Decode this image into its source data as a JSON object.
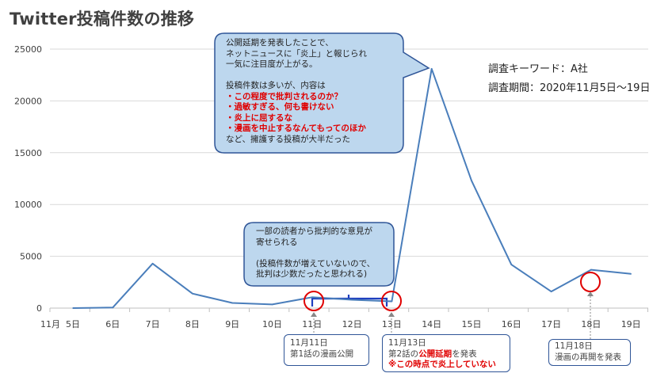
{
  "title": "Twitter投稿件数の推移",
  "info": {
    "keyword": "調査キーワード：A社",
    "period": "調査期間：2020年11月5日〜19日"
  },
  "chart_data": {
    "type": "line",
    "month_label": "11月",
    "categories": [
      "5日",
      "6日",
      "7日",
      "8日",
      "9日",
      "10日",
      "11日",
      "12日",
      "13日",
      "14日",
      "15日",
      "16日",
      "17日",
      "18日",
      "19日"
    ],
    "series": [
      {
        "values": [
          0,
          50,
          4300,
          1400,
          500,
          350,
          1050,
          800,
          650,
          23100,
          12300,
          4200,
          1600,
          3700,
          3300
        ]
      }
    ],
    "y_ticks": [
      "0",
      "5000",
      "10000",
      "15000",
      "20000",
      "25000"
    ],
    "ylim": [
      0,
      25000
    ],
    "grid": true,
    "color": "#4a7ebb"
  },
  "callouts": {
    "top": {
      "lines": [
        "公開延期を発表したことで、",
        "ネットニュースに「炎上」と報じられ",
        "一気に注目度が上がる。"
      ],
      "lines2_intro": "投稿件数は多いが、内容は",
      "red_lines": [
        "・この程度で批判されるのか？",
        "・過敏すぎる、何も書けない",
        "・炎上に屈するな",
        "・漫画を中止するなんてもってのほか"
      ],
      "lines2_outro": "など、擁護する投稿が大半だった"
    },
    "middle": {
      "lines": [
        "一部の読者から批判的な意見が",
        "寄せられる"
      ],
      "lines2": [
        "(投稿件数が増えていないので、",
        "批判は少数だったと思われる)"
      ]
    }
  },
  "boxes": {
    "nov11": {
      "lines": [
        "11月11日",
        "第1話の漫画公開"
      ]
    },
    "nov13": {
      "line1": "11月13日",
      "line2_pre": "第2話の",
      "line2_red": "公開延期",
      "line2_post": "を発表",
      "line3_red": "※この時点で炎上していない"
    },
    "nov18": {
      "lines": [
        "11月18日",
        "漫画の再開を発表"
      ]
    }
  },
  "colors": {
    "line": "#4a7ebb",
    "callout_fill": "#bdd7ee",
    "callout_border": "#2f5597",
    "marker": "#e00000",
    "bracket": "#1f3fbf"
  }
}
